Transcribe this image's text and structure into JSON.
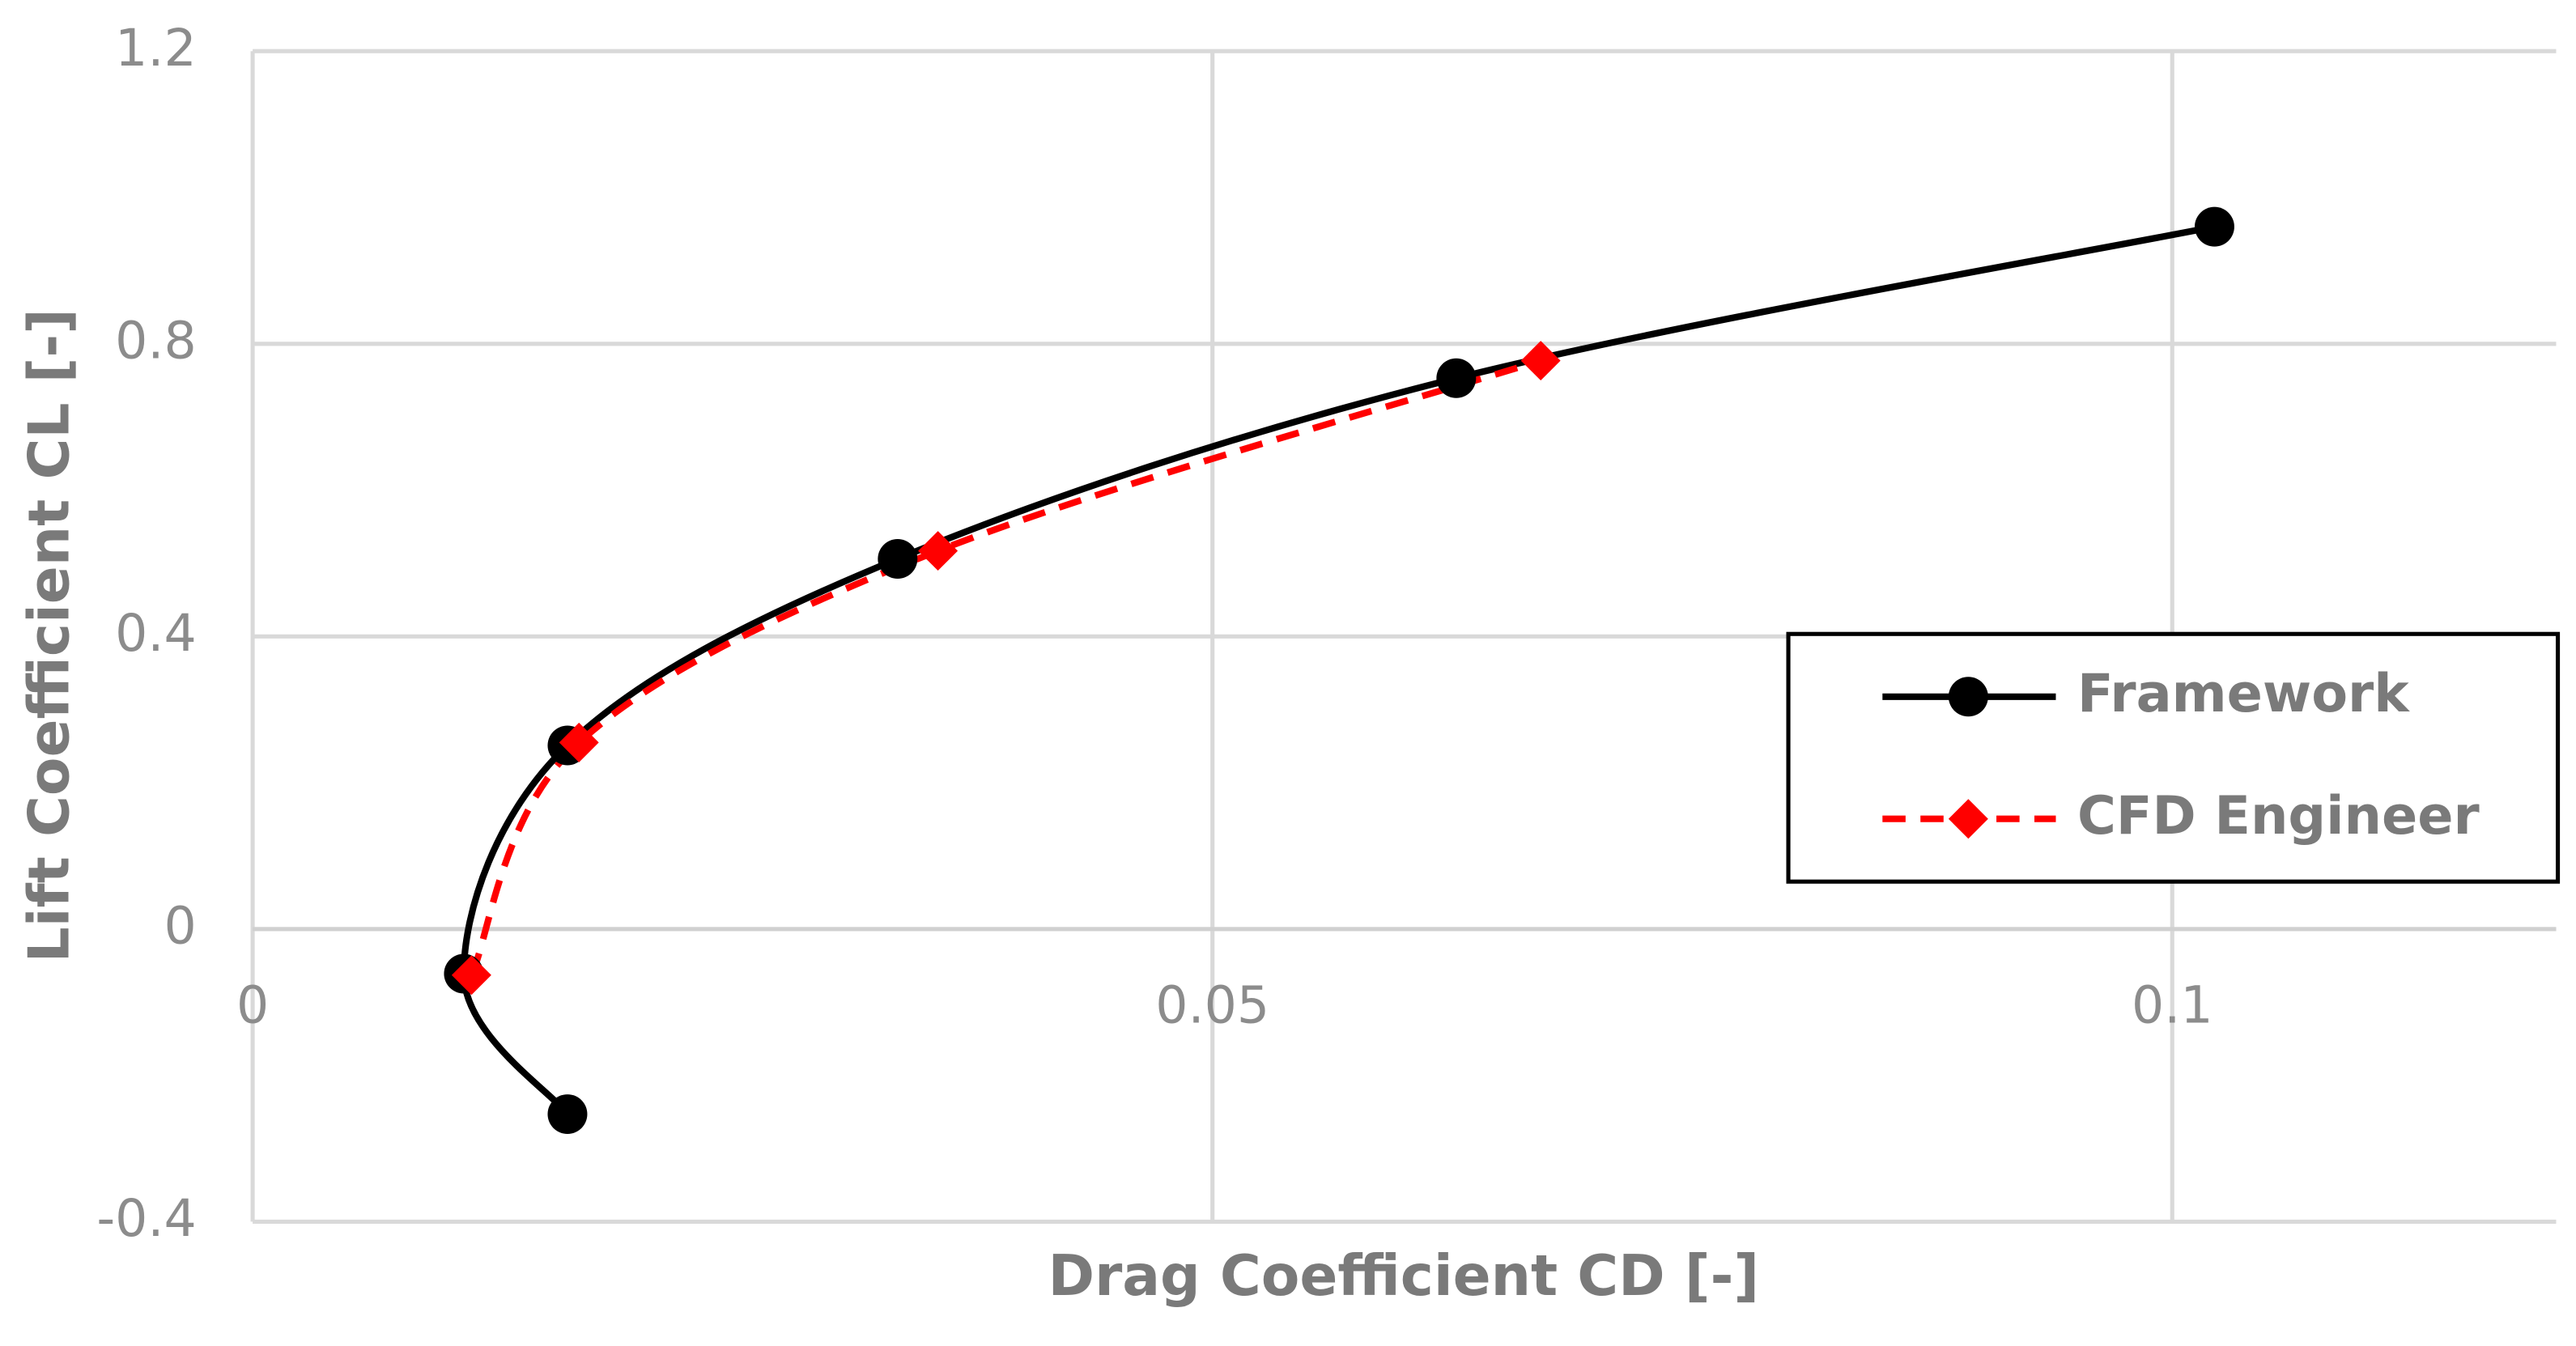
{
  "chart_data": {
    "type": "line",
    "x_label": "Drag Coefficient CD [-]",
    "y_label": "Lift Coefficient CL [-]",
    "series": [
      {
        "name": "Framework",
        "color": "#000000",
        "marker": "circle",
        "dash": "solid",
        "x": [
          0.0164,
          0.011,
          0.0164,
          0.0336,
          0.0627,
          0.1022
        ],
        "values": [
          -0.253,
          -0.061,
          0.251,
          0.506,
          0.753,
          0.96
        ]
      },
      {
        "name": "CFD Engineer",
        "color": "#ff0000",
        "marker": "diamond",
        "dash": "dashed",
        "x": [
          0.0114,
          0.017,
          0.0357,
          0.0671
        ],
        "values": [
          -0.063,
          0.255,
          0.517,
          0.777
        ]
      }
    ],
    "xlim": [
      0,
      0.12
    ],
    "xticks": [
      0,
      0.05,
      0.1
    ],
    "ylim": [
      -0.4,
      1.2
    ],
    "yticks": [
      -0.4,
      0,
      0.4,
      0.8,
      1.2
    ],
    "grid": true,
    "legend": "right",
    "smooth": true
  }
}
